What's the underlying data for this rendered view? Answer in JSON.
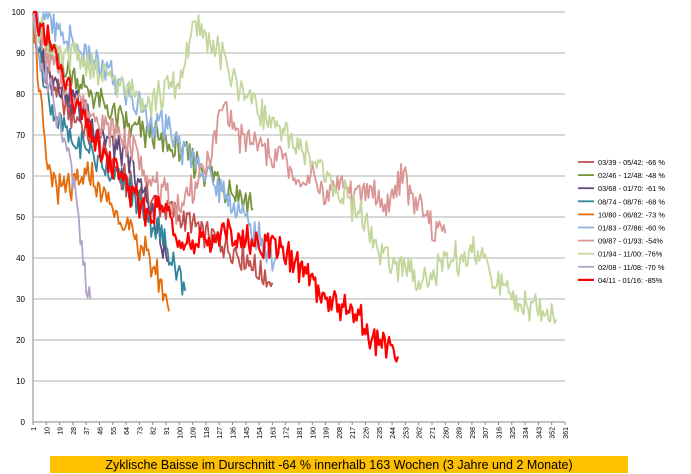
{
  "chart_data": {
    "type": "line",
    "title": "",
    "xlabel": "",
    "ylabel": "",
    "ylim": [
      0,
      100
    ],
    "yticks": [
      0,
      10,
      20,
      30,
      40,
      50,
      60,
      70,
      80,
      90,
      100
    ],
    "xlim": [
      1,
      361
    ],
    "xticks": [
      1,
      10,
      19,
      28,
      37,
      46,
      55,
      64,
      73,
      82,
      91,
      100,
      109,
      118,
      127,
      136,
      145,
      154,
      163,
      172,
      181,
      190,
      199,
      208,
      217,
      226,
      235,
      244,
      253,
      262,
      271,
      280,
      289,
      298,
      307,
      316,
      325,
      334,
      343,
      352,
      361
    ],
    "grid": "horizontal",
    "legend_position": "right",
    "series": [
      {
        "name": "03/39 - 05/42: -66 %",
        "color": "#c0504d",
        "x": [
          1,
          10,
          20,
          30,
          40,
          50,
          60,
          70,
          80,
          90,
          100,
          110,
          120,
          130,
          140,
          150,
          160,
          163
        ],
        "y": [
          100,
          86,
          78,
          74,
          70,
          66,
          60,
          56,
          54,
          52,
          50,
          47,
          45,
          44,
          42,
          38,
          35,
          34
        ]
      },
      {
        "name": "02/46 - 12/48: -48 %",
        "color": "#77933c",
        "x": [
          1,
          10,
          20,
          30,
          40,
          50,
          60,
          70,
          80,
          90,
          100,
          110,
          120,
          130,
          140,
          150
        ],
        "y": [
          100,
          92,
          87,
          84,
          80,
          77,
          74,
          71,
          70,
          68,
          66,
          63,
          61,
          58,
          56,
          52
        ]
      },
      {
        "name": "03/68 - 01/70: -61 %",
        "color": "#604a7b",
        "x": [
          1,
          10,
          20,
          30,
          40,
          50,
          60,
          70,
          80,
          88,
          92
        ],
        "y": [
          100,
          85,
          82,
          78,
          74,
          70,
          66,
          60,
          52,
          44,
          39
        ]
      },
      {
        "name": "08/74 - 08/76: -68 %",
        "color": "#31859c",
        "x": [
          1,
          10,
          20,
          30,
          40,
          50,
          60,
          70,
          80,
          90,
          100,
          104
        ],
        "y": [
          100,
          80,
          72,
          68,
          66,
          62,
          60,
          55,
          50,
          45,
          35,
          32
        ]
      },
      {
        "name": "10/80 - 06/82: -73 %",
        "color": "#e46c0a",
        "x": [
          1,
          10,
          20,
          30,
          40,
          50,
          60,
          70,
          76,
          82,
          86,
          90,
          93
        ],
        "y": [
          100,
          62,
          56,
          58,
          60,
          55,
          50,
          44,
          42,
          38,
          36,
          32,
          27
        ]
      },
      {
        "name": "01/83 - 07/86: -60 %",
        "color": "#8eb4e3",
        "x": [
          1,
          10,
          20,
          30,
          40,
          50,
          60,
          70,
          80,
          90,
          100,
          110,
          120,
          130,
          140,
          150,
          160,
          165
        ],
        "y": [
          100,
          98,
          94,
          92,
          88,
          86,
          82,
          78,
          74,
          72,
          68,
          64,
          60,
          56,
          52,
          46,
          42,
          40
        ]
      },
      {
        "name": "09/87 - 01/93: -54%",
        "color": "#d99694",
        "x": [
          1,
          10,
          20,
          30,
          40,
          50,
          60,
          70,
          80,
          90,
          100,
          110,
          120,
          130,
          140,
          150,
          160,
          170,
          180,
          190,
          200,
          210,
          220,
          230,
          240,
          250,
          260,
          270,
          280
        ],
        "y": [
          100,
          90,
          84,
          80,
          76,
          72,
          70,
          66,
          60,
          55,
          52,
          58,
          64,
          78,
          70,
          68,
          66,
          64,
          58,
          60,
          56,
          58,
          55,
          57,
          52,
          60,
          54,
          48,
          46
        ]
      },
      {
        "name": "01/94 - 11/00: -76%",
        "color": "#c3d69b",
        "x": [
          1,
          10,
          20,
          30,
          40,
          50,
          60,
          70,
          80,
          90,
          100,
          105,
          110,
          120,
          130,
          140,
          150,
          160,
          170,
          180,
          190,
          200,
          210,
          220,
          230,
          240,
          250,
          260,
          270,
          280,
          290,
          300,
          310,
          320,
          330,
          340,
          350,
          355
        ],
        "y": [
          100,
          92,
          88,
          90,
          86,
          84,
          82,
          80,
          78,
          80,
          82,
          90,
          96,
          94,
          88,
          82,
          78,
          74,
          70,
          68,
          64,
          60,
          55,
          52,
          45,
          40,
          38,
          36,
          35,
          38,
          40,
          42,
          36,
          32,
          30,
          28,
          26,
          25
        ]
      },
      {
        "name": "02/08 - 11/08: -70 %",
        "color": "#b3a2c7",
        "x": [
          1,
          5,
          10,
          15,
          20,
          25,
          30,
          33,
          36,
          38,
          40
        ],
        "y": [
          100,
          88,
          84,
          78,
          72,
          66,
          56,
          45,
          36,
          32,
          30
        ]
      },
      {
        "name": "04/11 - 01/16: -85%",
        "color": "#ff0000",
        "x": [
          1,
          10,
          20,
          30,
          40,
          50,
          60,
          70,
          80,
          90,
          100,
          110,
          120,
          130,
          140,
          150,
          160,
          170,
          180,
          190,
          200,
          210,
          220,
          230,
          240,
          248
        ],
        "y": [
          100,
          94,
          86,
          78,
          70,
          64,
          60,
          54,
          50,
          52,
          46,
          42,
          44,
          47,
          45,
          44,
          43,
          42,
          38,
          34,
          30,
          29,
          26,
          21,
          18,
          16
        ]
      }
    ]
  },
  "caption": "Zyklische Baisse im Durschnitt -64 % innerhalb 163 Wochen (3 Jahre und 2 Monate)"
}
